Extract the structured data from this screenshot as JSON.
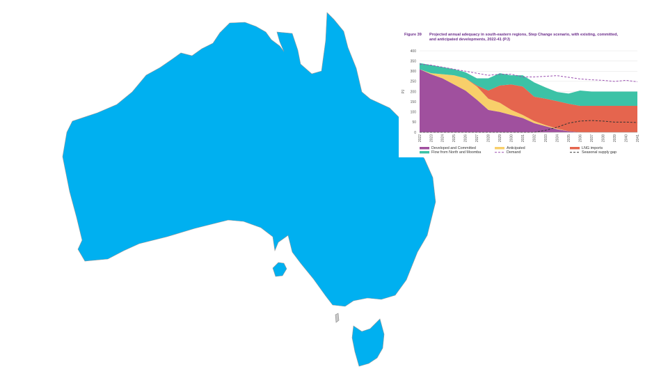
{
  "colors": {
    "map_fill": "#00b0f0",
    "map_stroke": "#9a9a9a"
  },
  "figure": {
    "number": "Figure 39",
    "title_line1": "Projected annual adequacy in south-eastern regions, Step Change scenario, with existing, committed,",
    "title_line2": "and anticipated developments, 2022-41 (PJ)"
  },
  "chart_data": {
    "type": "area",
    "stacked": true,
    "ylabel": "PJ",
    "ylim": [
      0,
      400
    ],
    "yticks": [
      "0",
      "50",
      "100",
      "150",
      "200",
      "250",
      "300",
      "350",
      "400"
    ],
    "categories": [
      "2022",
      "2023",
      "2024",
      "2025",
      "2026",
      "2027",
      "2028",
      "2029",
      "2030",
      "2031",
      "2032",
      "2033",
      "2034",
      "2035",
      "2036",
      "2037",
      "2038",
      "2039",
      "2040",
      "2041"
    ],
    "series": [
      {
        "name": "Developed and Committed",
        "color": "#a0509e",
        "values": [
          310,
          285,
          265,
          235,
          205,
          160,
          110,
          100,
          85,
          70,
          45,
          30,
          15,
          5,
          0,
          0,
          0,
          0,
          0,
          0
        ]
      },
      {
        "name": "Anticipated",
        "color": "#f8cf6a",
        "values": [
          0,
          5,
          20,
          45,
          60,
          65,
          55,
          45,
          25,
          15,
          10,
          5,
          3,
          0,
          0,
          0,
          0,
          0,
          0,
          0
        ]
      },
      {
        "name": "LNG imports",
        "color": "#e5654e",
        "values": [
          0,
          0,
          0,
          0,
          0,
          5,
          40,
          85,
          125,
          140,
          120,
          130,
          135,
          135,
          130,
          130,
          130,
          130,
          130,
          130
        ]
      },
      {
        "name": "Flow from North and Moomba",
        "color": "#3cc2a6",
        "values": [
          30,
          40,
          35,
          30,
          30,
          35,
          60,
          60,
          45,
          55,
          70,
          55,
          45,
          50,
          75,
          70,
          70,
          70,
          70,
          70
        ]
      }
    ],
    "lines": [
      {
        "name": "Demand",
        "style": "dashed",
        "color": "#9a4fb0",
        "values": [
          335,
          330,
          320,
          310,
          300,
          290,
          280,
          285,
          285,
          272,
          272,
          275,
          278,
          270,
          262,
          258,
          255,
          250,
          255,
          248
        ]
      },
      {
        "name": "Seasonal supply gap",
        "style": "dashed",
        "color": "#333333",
        "values": [
          0,
          0,
          0,
          0,
          0,
          0,
          0,
          0,
          0,
          0,
          0,
          10,
          25,
          45,
          55,
          58,
          55,
          50,
          50,
          48
        ]
      }
    ],
    "legend": [
      {
        "label": "Developed and Committed",
        "kind": "swatch",
        "color": "#a0509e"
      },
      {
        "label": "Anticipated",
        "kind": "swatch",
        "color": "#f8cf6a"
      },
      {
        "label": "LNG imports",
        "kind": "swatch",
        "color": "#e5654e"
      },
      {
        "label": "Flow from North and Moomba",
        "kind": "swatch",
        "color": "#3cc2a6"
      },
      {
        "label": "Demand",
        "kind": "dash",
        "color": "#9a4fb0"
      },
      {
        "label": "Seasonal supply gap",
        "kind": "dash",
        "color": "#333333"
      }
    ],
    "legend_position": "bottom",
    "grid": true
  }
}
